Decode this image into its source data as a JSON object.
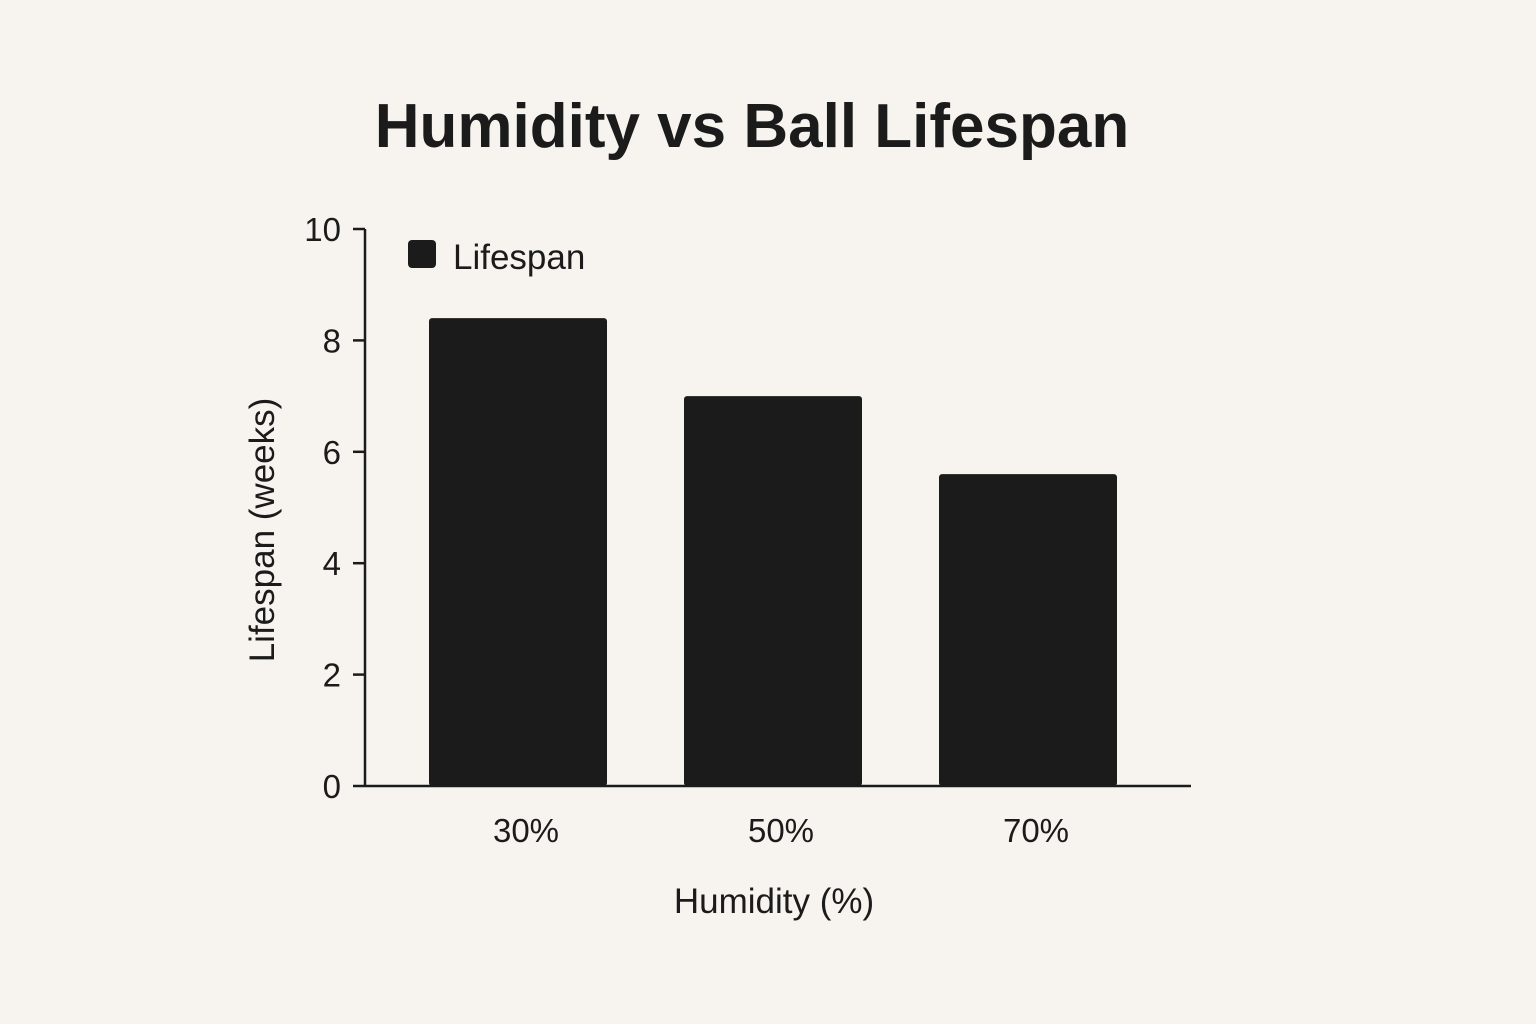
{
  "chart_data": {
    "type": "bar",
    "title": "Humidity vs Ball Lifespan",
    "categories": [
      "30%",
      "50%",
      "70%"
    ],
    "series": [
      {
        "name": "Lifespan",
        "values": [
          8.4,
          7.0,
          5.6
        ],
        "color": "#1b1b1b"
      }
    ],
    "xlabel": "Humidity (%)",
    "ylabel": "Lifespan (weeks)",
    "ylim": [
      0,
      10
    ],
    "yticks": [
      "0",
      "2",
      "4",
      "6",
      "8",
      "10"
    ],
    "grid": false,
    "legend_position": "top-left"
  },
  "colors": {
    "background": "#f7f4ef",
    "ink": "#1b1b1b"
  }
}
